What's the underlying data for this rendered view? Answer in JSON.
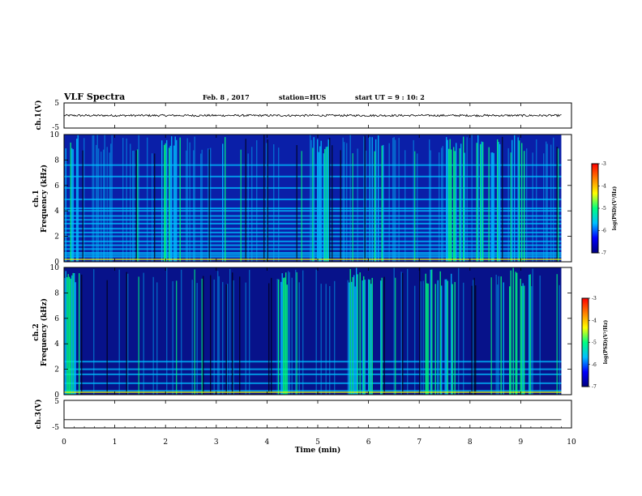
{
  "header": {
    "title": "VLF Spectra",
    "date": "Feb. 8  , 2017",
    "station": "station=HUS",
    "start": "start  UT =   9 : 10: 2"
  },
  "chart_data": [
    {
      "type": "line",
      "panel": "ch1-waveform",
      "ylabel": "ch.1(V)",
      "ylim": [
        -5,
        5
      ],
      "yticks": [
        "5",
        "-5"
      ],
      "xlim": [
        0,
        10
      ],
      "series": [
        {
          "baseline": 0,
          "noise_amplitude": 0.4,
          "x_end": 9.8
        }
      ]
    },
    {
      "type": "heatmap",
      "panel": "ch1-spectrogram",
      "ylabel": "Frequency  (kHz)",
      "channel_label": "ch.1",
      "ylim": [
        0,
        10
      ],
      "yticks": [
        "0",
        "2",
        "4",
        "6",
        "8",
        "10"
      ],
      "xlim": [
        0,
        10
      ],
      "x_end": 9.8,
      "horizontal_bands_khz": [
        0.4,
        0.55,
        0.7,
        1.0,
        1.3,
        1.6,
        2.0,
        2.3,
        2.6,
        3.0,
        3.3,
        3.6,
        4.0,
        4.2,
        4.9,
        5.8,
        6.7,
        7.6
      ],
      "bright_intervals_min": [
        [
          0.0,
          0.35
        ],
        [
          1.8,
          2.3
        ],
        [
          3.0,
          3.2
        ],
        [
          4.9,
          5.2
        ],
        [
          6.0,
          6.3
        ],
        [
          7.5,
          7.9
        ],
        [
          8.1,
          8.6
        ],
        [
          8.8,
          9.1
        ]
      ],
      "colorbar": {
        "label": "log(PSD)(V²/Hz)",
        "ticks": [
          "-3",
          "-4",
          "-5",
          "-6",
          "-7"
        ],
        "range": [
          -7,
          -3
        ]
      }
    },
    {
      "type": "heatmap",
      "panel": "ch2-spectrogram",
      "ylabel": "Frequency  (kHz)",
      "channel_label": "ch.2",
      "ylim": [
        0,
        10
      ],
      "yticks": [
        "0",
        "2",
        "4",
        "6",
        "8",
        "10"
      ],
      "xlim": [
        0,
        10
      ],
      "x_end": 9.8,
      "horizontal_bands_khz": [
        0.3,
        0.9,
        1.6,
        2.0,
        2.6
      ],
      "bright_intervals_min": [
        [
          0.0,
          0.3
        ],
        [
          4.2,
          4.4
        ],
        [
          5.6,
          6.3
        ],
        [
          7.1,
          7.7
        ],
        [
          8.6,
          9.2
        ]
      ],
      "colorbar": {
        "label": "log(PSD)(V²/Hz)",
        "ticks": [
          "-3",
          "-4",
          "-5",
          "-6",
          "-7"
        ],
        "range": [
          -7,
          -3
        ]
      }
    },
    {
      "type": "line",
      "panel": "ch3-waveform",
      "ylabel": "ch.3(V)",
      "ylim": [
        -5,
        5
      ],
      "yticks": [
        "5",
        "-5"
      ],
      "xlim": [
        0,
        10
      ],
      "xlabel": "Time  (min)",
      "xticks": [
        "0",
        "1",
        "2",
        "3",
        "4",
        "5",
        "6",
        "7",
        "8",
        "9",
        "10"
      ],
      "series": [
        {
          "baseline": -2.0,
          "noise_amplitude": 0,
          "x_end": 9.8
        }
      ]
    }
  ],
  "colors": {
    "colormap": [
      "#00007f",
      "#0000ff",
      "#00bfff",
      "#00ff80",
      "#ffff00",
      "#ff8000",
      "#ff0000",
      "#ffffff"
    ],
    "trace": "#000000"
  }
}
